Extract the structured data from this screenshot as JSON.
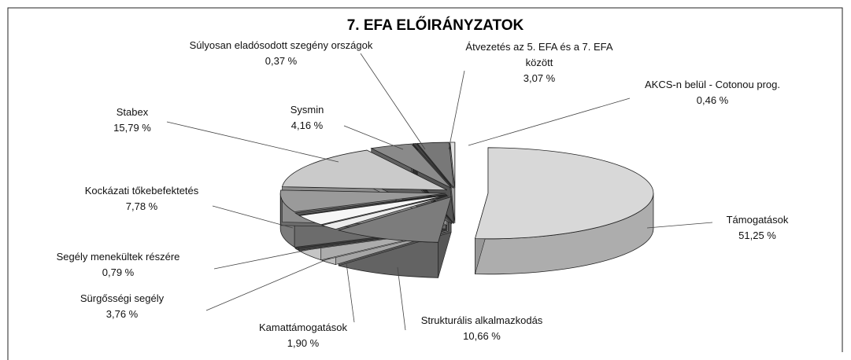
{
  "chart_data": {
    "type": "pie",
    "title": "7. EFA ELŐIRÁNYZATOK",
    "categories": [
      "Támogatások",
      "Strukturális alkalmazkodás",
      "Kamattámogatások",
      "Sürgősségi segély",
      "Segély menekültek részére",
      "Kockázati tőkebefektetés",
      "Stabex",
      "Sysmin",
      "Súlyosan eladósodott szegény országok",
      "Átvezetés az 5. EFA és a 7. EFA között",
      "AKCS-n belül - Cotonou prog."
    ],
    "values": [
      51.25,
      10.66,
      1.9,
      3.76,
      0.79,
      7.78,
      15.79,
      4.16,
      0.37,
      3.07,
      0.46
    ],
    "value_labels": [
      "51,25 %",
      "10,66 %",
      "1,90 %",
      "3,76 %",
      "0,79 %",
      "7,78 %",
      "15,79 %",
      "4,16 %",
      "0,37 %",
      "3,07 %",
      "0,46 %"
    ],
    "colors": [
      "#d8d8d8",
      "#7c7c7c",
      "#ececec",
      "#f6f6f6",
      "#5a5a5a",
      "#9a9a9a",
      "#cacaca",
      "#8a8a8a",
      "#444444",
      "#787878",
      "#e0e0e0"
    ]
  }
}
